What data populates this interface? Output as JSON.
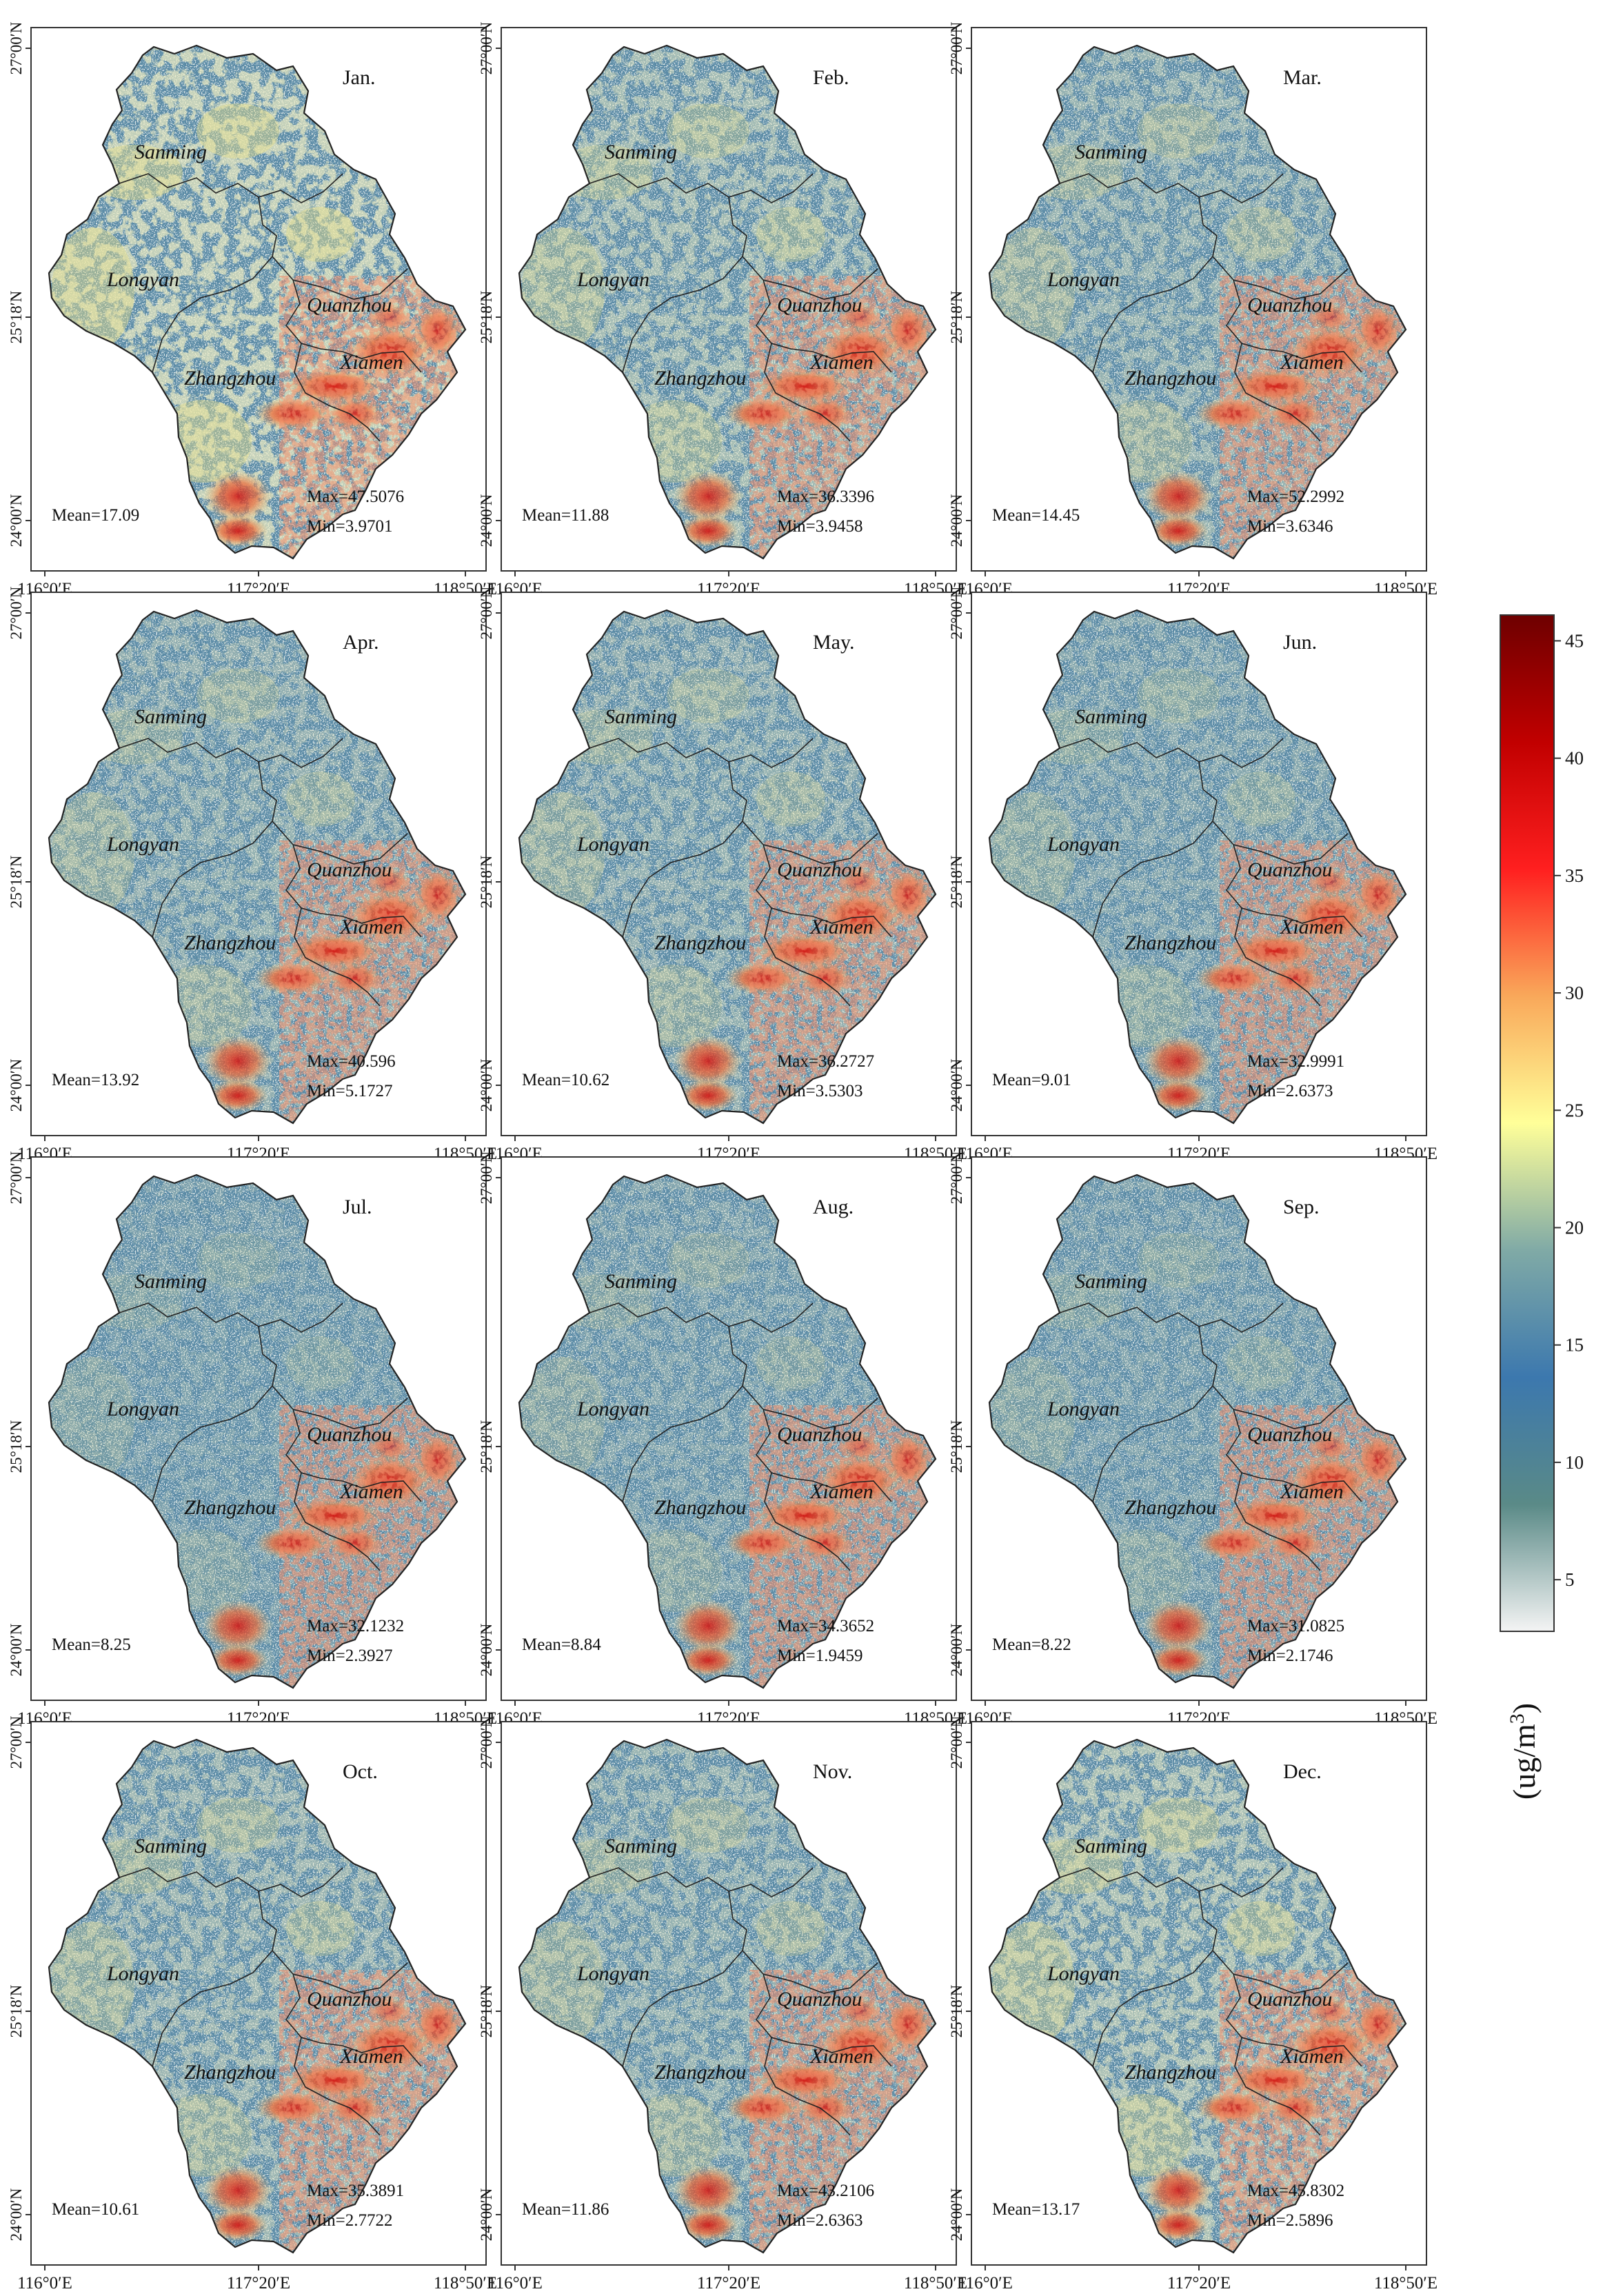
{
  "x_ticks": [
    "116°0′E",
    "117°20′E",
    "118°50′E"
  ],
  "y_ticks": [
    "27°00′N",
    "25°18′N",
    "24°00′N"
  ],
  "cities": [
    "Sanming",
    "Longyan",
    "Quanzhou",
    "Xiamen",
    "Zhangzhou"
  ],
  "panels": [
    {
      "month": "Jan.",
      "mean": "Mean=17.09",
      "max": "Max=47.5076",
      "min": "Min=3.9701",
      "level": 0.4
    },
    {
      "month": "Feb.",
      "mean": "Mean=11.88",
      "max": "Max=36.3396",
      "min": "Min=3.9458",
      "level": 0.27
    },
    {
      "month": "Mar.",
      "mean": "Mean=14.45",
      "max": "Max=52.2992",
      "min": "Min=3.6346",
      "level": 0.22
    },
    {
      "month": "Apr.",
      "mean": "Mean=13.92",
      "max": "Max=40.596",
      "min": "Min=5.1727",
      "level": 0.2
    },
    {
      "month": "May.",
      "mean": "Mean=10.62",
      "max": "Max=36.2727",
      "min": "Min=3.5303",
      "level": 0.2
    },
    {
      "month": "Jun.",
      "mean": "Mean=9.01",
      "max": "Max=32.9991",
      "min": "Min=2.6373",
      "level": 0.16
    },
    {
      "month": "Jul.",
      "mean": "Mean=8.25",
      "max": "Max=32.1232",
      "min": "Min=2.3927",
      "level": 0.12
    },
    {
      "month": "Aug.",
      "mean": "Mean=8.84",
      "max": "Max=34.3652",
      "min": "Min=1.9459",
      "level": 0.14
    },
    {
      "month": "Sep.",
      "mean": "Mean=8.22",
      "max": "Max=31.0825",
      "min": "Min=2.1746",
      "level": 0.13
    },
    {
      "month": "Oct.",
      "mean": "Mean=10.61",
      "max": "Max=35.3891",
      "min": "Min=2.7722",
      "level": 0.24
    },
    {
      "month": "Nov.",
      "mean": "Mean=11.86",
      "max": "Max=43.2106",
      "min": "Min=2.6363",
      "level": 0.22
    },
    {
      "month": "Dec.",
      "mean": "Mean=13.17",
      "max": "Max=45.8302",
      "min": "Min=2.5896",
      "level": 0.3
    }
  ],
  "colorbar": {
    "ticks": [
      "5",
      "10",
      "15",
      "20",
      "25",
      "30",
      "35",
      "40",
      "45"
    ],
    "unit": "(ug/m",
    "unit_sup": "3",
    "unit_close": ")",
    "colors": [
      "#f4f4f4",
      "#5a8a87",
      "#3c78ae",
      "#80aaa6",
      "#ffff99",
      "#f9a85a",
      "#ff1f1f",
      "#c10000",
      "#6e0000"
    ]
  },
  "map_colors": {
    "base": "#5b8ba6",
    "speck": "#a9c3c5",
    "warm": "#e9e08c",
    "hot": "#ef6a3a",
    "peak": "#cf1010"
  }
}
